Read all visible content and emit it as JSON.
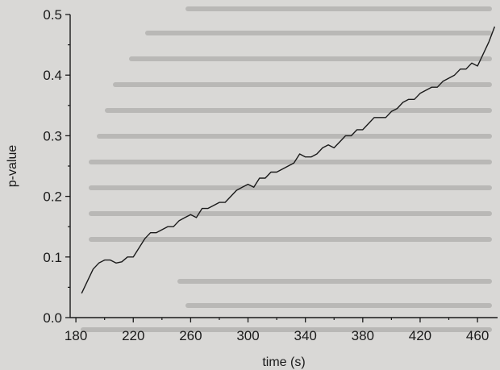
{
  "chart_data": {
    "type": "line",
    "title": "",
    "xlabel": "time (s)",
    "ylabel": "p-value",
    "xlim": [
      176,
      474
    ],
    "ylim": [
      0.0,
      0.5
    ],
    "x_ticks": [
      180,
      220,
      260,
      300,
      340,
      380,
      420,
      460
    ],
    "y_ticks": [
      0.0,
      0.1,
      0.2,
      0.3,
      0.4,
      0.5
    ],
    "x_tick_labels": [
      "180",
      "220",
      "260",
      "300",
      "340",
      "380",
      "420",
      "460"
    ],
    "y_tick_labels": [
      "0.0",
      "0.1",
      "0.2",
      "0.3",
      "0.4",
      "0.5"
    ],
    "grid": false,
    "legend": "none",
    "line_color": "#1a1a1a",
    "background_color": "#d9d8d6",
    "series": [
      {
        "x": [
          184,
          188,
          192,
          196,
          200,
          204,
          208,
          212,
          216,
          220,
          224,
          228,
          232,
          236,
          240,
          244,
          248,
          252,
          256,
          260,
          264,
          268,
          272,
          276,
          280,
          284,
          288,
          292,
          296,
          300,
          304,
          308,
          312,
          316,
          320,
          324,
          328,
          332,
          336,
          340,
          344,
          348,
          352,
          356,
          360,
          364,
          368,
          372,
          376,
          380,
          384,
          388,
          392,
          396,
          400,
          404,
          408,
          412,
          416,
          420,
          424,
          428,
          432,
          436,
          440,
          444,
          448,
          452,
          456,
          460,
          464,
          468,
          472
        ],
        "y": [
          0.04,
          0.06,
          0.08,
          0.09,
          0.095,
          0.095,
          0.09,
          0.092,
          0.1,
          0.1,
          0.115,
          0.13,
          0.14,
          0.14,
          0.145,
          0.15,
          0.15,
          0.16,
          0.165,
          0.17,
          0.165,
          0.18,
          0.18,
          0.185,
          0.19,
          0.19,
          0.2,
          0.21,
          0.215,
          0.22,
          0.215,
          0.23,
          0.23,
          0.24,
          0.24,
          0.245,
          0.25,
          0.255,
          0.27,
          0.265,
          0.265,
          0.27,
          0.28,
          0.285,
          0.28,
          0.29,
          0.3,
          0.3,
          0.31,
          0.31,
          0.32,
          0.33,
          0.33,
          0.33,
          0.34,
          0.345,
          0.355,
          0.36,
          0.36,
          0.37,
          0.375,
          0.38,
          0.38,
          0.39,
          0.395,
          0.4,
          0.41,
          0.41,
          0.42,
          0.415,
          0.435,
          0.455,
          0.48
        ]
      }
    ]
  }
}
